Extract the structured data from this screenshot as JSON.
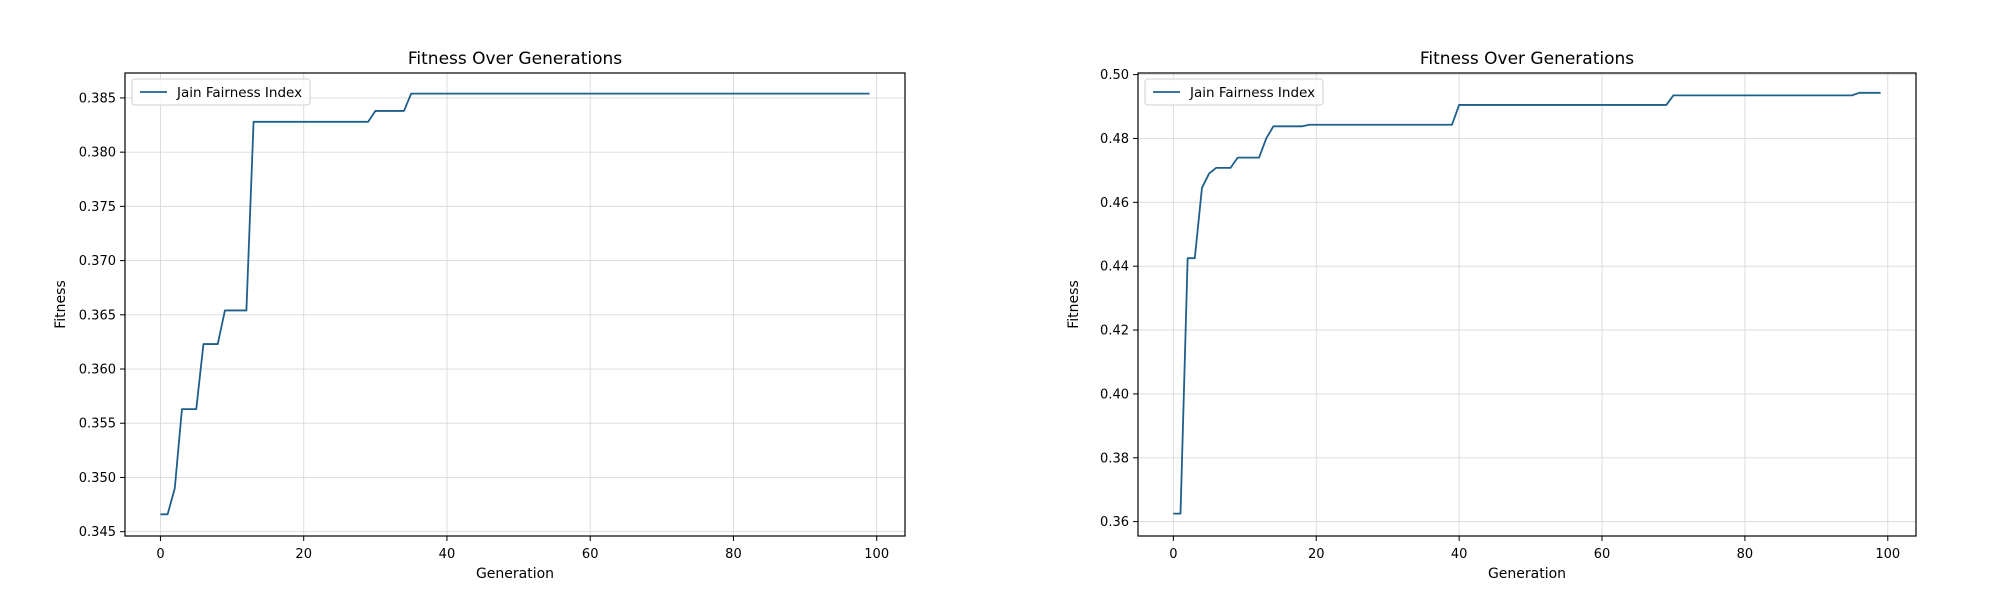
{
  "chart_data": [
    {
      "type": "line",
      "title": "Fitness Over Generations",
      "xlabel": "Generation",
      "ylabel": "Fitness",
      "xlim": [
        -4.95,
        103.95
      ],
      "ylim": [
        0.3446,
        0.3873
      ],
      "xticks": [
        0,
        20,
        40,
        60,
        80,
        100
      ],
      "yticks": [
        0.345,
        0.35,
        0.355,
        0.36,
        0.365,
        0.37,
        0.375,
        0.38,
        0.385
      ],
      "ytick_labels": [
        "0.345",
        "0.350",
        "0.355",
        "0.360",
        "0.365",
        "0.370",
        "0.375",
        "0.380",
        "0.385"
      ],
      "grid": true,
      "legend": {
        "position": "top-left",
        "entries": [
          "Jain Fairness Index"
        ]
      },
      "line_color": "#1f5f8b",
      "series": [
        {
          "name": "Jain Fairness Index",
          "points": [
            [
              0,
              0.3466
            ],
            [
              1,
              0.3466
            ],
            [
              2,
              0.349
            ],
            [
              3,
              0.3563
            ],
            [
              4,
              0.3563
            ],
            [
              5,
              0.3563
            ],
            [
              6,
              0.3623
            ],
            [
              7,
              0.3623
            ],
            [
              8,
              0.3623
            ],
            [
              9,
              0.3654
            ],
            [
              10,
              0.3654
            ],
            [
              11,
              0.3654
            ],
            [
              12,
              0.3654
            ],
            [
              13,
              0.3828
            ],
            [
              14,
              0.3828
            ],
            [
              29,
              0.3828
            ],
            [
              30,
              0.3838
            ],
            [
              34,
              0.3838
            ],
            [
              35,
              0.3854
            ],
            [
              99,
              0.3854
            ]
          ]
        }
      ]
    },
    {
      "type": "line",
      "title": "Fitness Over Generations",
      "xlabel": "Generation",
      "ylabel": "Fitness",
      "xlim": [
        -4.95,
        103.95
      ],
      "ylim": [
        0.3555,
        0.5005
      ],
      "xticks": [
        0,
        20,
        40,
        60,
        80,
        100
      ],
      "yticks": [
        0.36,
        0.38,
        0.4,
        0.42,
        0.44,
        0.46,
        0.48,
        0.5
      ],
      "ytick_labels": [
        "0.36",
        "0.38",
        "0.40",
        "0.42",
        "0.44",
        "0.46",
        "0.48",
        "0.50"
      ],
      "grid": true,
      "legend": {
        "position": "top-left",
        "entries": [
          "Jain Fairness Index"
        ]
      },
      "line_color": "#1f5f8b",
      "series": [
        {
          "name": "Jain Fairness Index",
          "points": [
            [
              0,
              0.3625
            ],
            [
              1,
              0.3625
            ],
            [
              2,
              0.4425
            ],
            [
              3,
              0.4425
            ],
            [
              4,
              0.4645
            ],
            [
              5,
              0.469
            ],
            [
              6,
              0.4708
            ],
            [
              7,
              0.4708
            ],
            [
              8,
              0.4708
            ],
            [
              9,
              0.474
            ],
            [
              10,
              0.474
            ],
            [
              11,
              0.474
            ],
            [
              12,
              0.474
            ],
            [
              13,
              0.48
            ],
            [
              14,
              0.4838
            ],
            [
              18,
              0.4838
            ],
            [
              19,
              0.4843
            ],
            [
              39,
              0.4843
            ],
            [
              40,
              0.4905
            ],
            [
              69,
              0.4905
            ],
            [
              70,
              0.4935
            ],
            [
              95,
              0.4935
            ],
            [
              96,
              0.4943
            ],
            [
              99,
              0.4943
            ]
          ]
        }
      ]
    }
  ]
}
